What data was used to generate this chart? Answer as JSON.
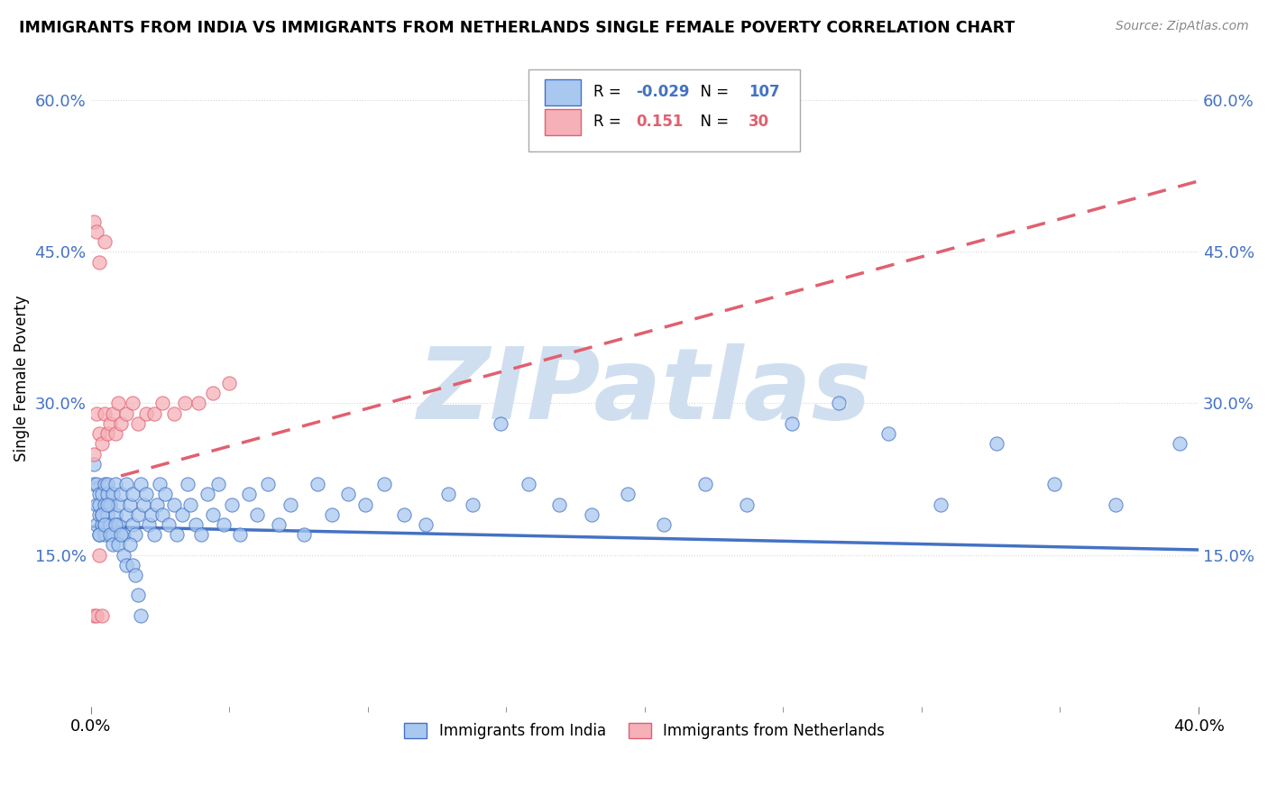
{
  "title": "IMMIGRANTS FROM INDIA VS IMMIGRANTS FROM NETHERLANDS SINGLE FEMALE POVERTY CORRELATION CHART",
  "source": "Source: ZipAtlas.com",
  "ylabel": "Single Female Poverty",
  "legend_label1": "Immigrants from India",
  "legend_label2": "Immigrants from Netherlands",
  "R1": -0.029,
  "N1": 107,
  "R2": 0.151,
  "N2": 30,
  "xlim": [
    0.0,
    0.4
  ],
  "ylim": [
    0.0,
    0.65
  ],
  "yticks": [
    0.15,
    0.3,
    0.45,
    0.6
  ],
  "color_india": "#a8c8f0",
  "color_netherlands": "#f5b0b8",
  "color_line_india": "#4472c4",
  "color_line_netherlands": "#e06070",
  "watermark": "ZIPatlas",
  "watermark_color": "#d0dff0",
  "india_x": [
    0.001,
    0.001,
    0.002,
    0.002,
    0.002,
    0.003,
    0.003,
    0.003,
    0.003,
    0.004,
    0.004,
    0.004,
    0.005,
    0.005,
    0.005,
    0.005,
    0.006,
    0.006,
    0.006,
    0.007,
    0.007,
    0.008,
    0.008,
    0.009,
    0.009,
    0.01,
    0.01,
    0.011,
    0.012,
    0.013,
    0.013,
    0.014,
    0.015,
    0.015,
    0.016,
    0.017,
    0.018,
    0.019,
    0.02,
    0.021,
    0.022,
    0.023,
    0.024,
    0.025,
    0.026,
    0.027,
    0.028,
    0.03,
    0.031,
    0.033,
    0.035,
    0.036,
    0.038,
    0.04,
    0.042,
    0.044,
    0.046,
    0.048,
    0.051,
    0.054,
    0.057,
    0.06,
    0.064,
    0.068,
    0.072,
    0.077,
    0.082,
    0.087,
    0.093,
    0.099,
    0.106,
    0.113,
    0.121,
    0.129,
    0.138,
    0.148,
    0.158,
    0.169,
    0.181,
    0.194,
    0.207,
    0.222,
    0.237,
    0.253,
    0.27,
    0.288,
    0.307,
    0.327,
    0.348,
    0.37,
    0.393,
    0.003,
    0.004,
    0.005,
    0.006,
    0.007,
    0.008,
    0.009,
    0.01,
    0.011,
    0.012,
    0.013,
    0.014,
    0.015,
    0.016,
    0.017,
    0.018
  ],
  "india_y": [
    0.24,
    0.22,
    0.2,
    0.18,
    0.22,
    0.19,
    0.21,
    0.17,
    0.2,
    0.18,
    0.21,
    0.19,
    0.22,
    0.17,
    0.2,
    0.18,
    0.21,
    0.19,
    0.22,
    0.18,
    0.2,
    0.17,
    0.21,
    0.19,
    0.22,
    0.2,
    0.18,
    0.21,
    0.17,
    0.19,
    0.22,
    0.2,
    0.18,
    0.21,
    0.17,
    0.19,
    0.22,
    0.2,
    0.21,
    0.18,
    0.19,
    0.17,
    0.2,
    0.22,
    0.19,
    0.21,
    0.18,
    0.2,
    0.17,
    0.19,
    0.22,
    0.2,
    0.18,
    0.17,
    0.21,
    0.19,
    0.22,
    0.18,
    0.2,
    0.17,
    0.21,
    0.19,
    0.22,
    0.18,
    0.2,
    0.17,
    0.22,
    0.19,
    0.21,
    0.2,
    0.22,
    0.19,
    0.18,
    0.21,
    0.2,
    0.28,
    0.22,
    0.2,
    0.19,
    0.21,
    0.18,
    0.22,
    0.2,
    0.28,
    0.3,
    0.27,
    0.2,
    0.26,
    0.22,
    0.2,
    0.26,
    0.17,
    0.19,
    0.18,
    0.2,
    0.17,
    0.16,
    0.18,
    0.16,
    0.17,
    0.15,
    0.14,
    0.16,
    0.14,
    0.13,
    0.11,
    0.09
  ],
  "neth_x": [
    0.001,
    0.001,
    0.002,
    0.002,
    0.003,
    0.003,
    0.004,
    0.005,
    0.005,
    0.006,
    0.007,
    0.008,
    0.009,
    0.01,
    0.011,
    0.013,
    0.015,
    0.017,
    0.02,
    0.023,
    0.026,
    0.03,
    0.034,
    0.039,
    0.044,
    0.05,
    0.001,
    0.002,
    0.003,
    0.004
  ],
  "neth_y": [
    0.25,
    0.48,
    0.29,
    0.47,
    0.27,
    0.44,
    0.26,
    0.29,
    0.46,
    0.27,
    0.28,
    0.29,
    0.27,
    0.3,
    0.28,
    0.29,
    0.3,
    0.28,
    0.29,
    0.29,
    0.3,
    0.29,
    0.3,
    0.3,
    0.31,
    0.32,
    0.09,
    0.09,
    0.15,
    0.09
  ],
  "neth_trend_x0": 0.0,
  "neth_trend_y0": 0.22,
  "neth_trend_x1": 0.4,
  "neth_trend_y1": 0.52,
  "india_trend_x0": 0.0,
  "india_trend_y0": 0.178,
  "india_trend_x1": 0.4,
  "india_trend_y1": 0.155
}
